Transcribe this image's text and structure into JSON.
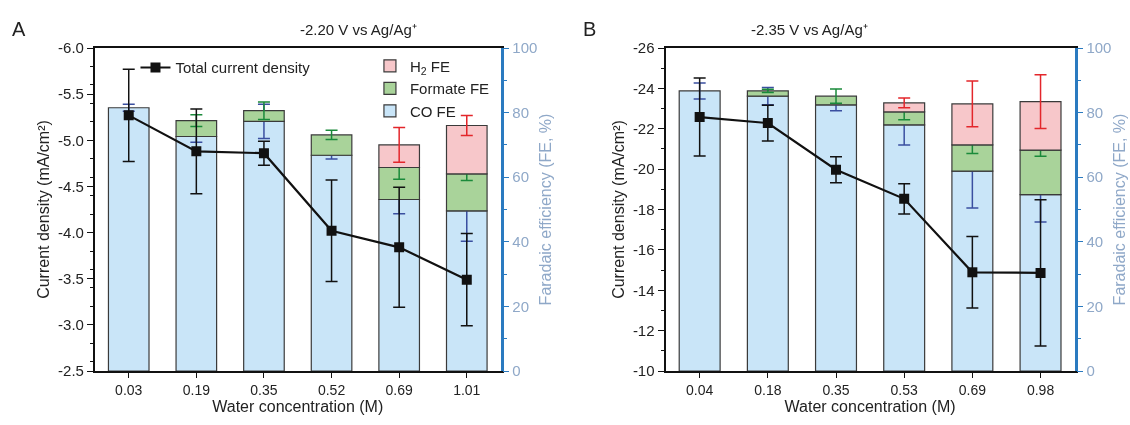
{
  "chart_data": [
    {
      "type": "bar",
      "stacked": true,
      "title": "-2.20 V vs Ag/Ag⁺",
      "xlabel": "Water concentration (M)",
      "ylabel": "Current density (mA/cm²)",
      "y2label": "Faradaic efficiency (FE, %)",
      "annotations": [
        "A"
      ],
      "legend": "top",
      "marker": "square",
      "categories": [
        "0.03",
        "0.19",
        "0.35",
        "0.52",
        "0.69",
        "1.01"
      ],
      "series": [
        {
          "name": "CO FE",
          "color": "#c9e5f8",
          "axis": "y2",
          "values": [
            81.5,
            72.6,
            77.3,
            66.8,
            53.1,
            49.6
          ],
          "errors": [
            1.1,
            1.8,
            5.3,
            1.2,
            4.4,
            9.4
          ]
        },
        {
          "name": "Formate FE",
          "color": "#a9d39a",
          "axis": "y2",
          "values": [
            null,
            4.9,
            3.3,
            6.3,
            9.9,
            11.4
          ],
          "errors": [
            null,
            1.8,
            2.7,
            1.4,
            3.6,
            2.0
          ]
        },
        {
          "name": "H$_{2}$ FE",
          "color": "#f7c7ca",
          "axis": "y2",
          "values": [
            null,
            null,
            null,
            null,
            7.0,
            15.0
          ],
          "errors": [
            null,
            null,
            null,
            null,
            5.4,
            3.1
          ]
        },
        {
          "name": "Total current density",
          "type": "line",
          "color": "#111111",
          "axis": "y",
          "values": [
            -5.27,
            -4.88,
            -4.86,
            -4.02,
            -3.84,
            -3.49
          ],
          "errors": [
            0.5,
            0.46,
            0.13,
            0.55,
            0.65,
            0.5
          ]
        }
      ],
      "ylim": [
        -2.5,
        -6.0
      ],
      "yticks": [
        {
          "value": -6.0,
          "label": "-6.0"
        },
        {
          "value": -5.5,
          "label": "-5.5"
        },
        {
          "value": -5.0,
          "label": "-5.0"
        },
        {
          "value": -4.5,
          "label": "-4.5"
        },
        {
          "value": -4.0,
          "label": "-4.0"
        },
        {
          "value": -3.5,
          "label": "-3.5"
        },
        {
          "value": -3.0,
          "label": "-3.0"
        },
        {
          "value": -2.5,
          "label": "-2.5"
        }
      ],
      "y2lim": [
        0,
        100
      ],
      "y2ticks": [
        0,
        20,
        40,
        60,
        80,
        100
      ]
    },
    {
      "type": "bar",
      "stacked": true,
      "title": "-2.35 V vs Ag/Ag⁺",
      "xlabel": "Water concentration (M)",
      "ylabel": "Current density (mA/cm²)",
      "y2label": "Faradaic efficiency (FE, %)",
      "annotations": [
        "B"
      ],
      "marker": "square",
      "categories": [
        "0.04",
        "0.18",
        "0.35",
        "0.53",
        "0.69",
        "0.98"
      ],
      "series": [
        {
          "color": "#c9e5f8",
          "axis": "y2",
          "values": [
            86.7,
            85.1,
            82.4,
            76.2,
            61.9,
            54.6
          ],
          "errors": [
            2.5,
            2.7,
            1.8,
            6.2,
            11.4,
            8.5
          ]
        },
        {
          "color": "#a9d39a",
          "axis": "y2",
          "values": [
            null,
            1.6,
            2.7,
            4.0,
            8.1,
            13.8
          ],
          "errors": [
            null,
            0.5,
            2.2,
            2.4,
            2.7,
            1.9
          ]
        },
        {
          "color": "#f7c7ca",
          "axis": "y2",
          "values": [
            null,
            null,
            null,
            2.8,
            12.7,
            15.0
          ],
          "errors": [
            null,
            null,
            null,
            1.5,
            7.1,
            8.3
          ]
        },
        {
          "type": "line",
          "color": "#111111",
          "axis": "y",
          "values": [
            -22.58,
            -22.28,
            -19.97,
            -18.53,
            -14.89,
            -14.86
          ],
          "errors": [
            1.93,
            0.89,
            0.64,
            0.75,
            1.77,
            3.62
          ]
        }
      ],
      "ylim": [
        -10,
        -26
      ],
      "yticks": [
        -26,
        -24,
        -22,
        -20,
        -18,
        -16,
        -14,
        -12,
        -10
      ],
      "y2lim": [
        0,
        100
      ],
      "y2ticks": [
        0,
        20,
        40,
        60,
        80,
        100
      ]
    }
  ]
}
